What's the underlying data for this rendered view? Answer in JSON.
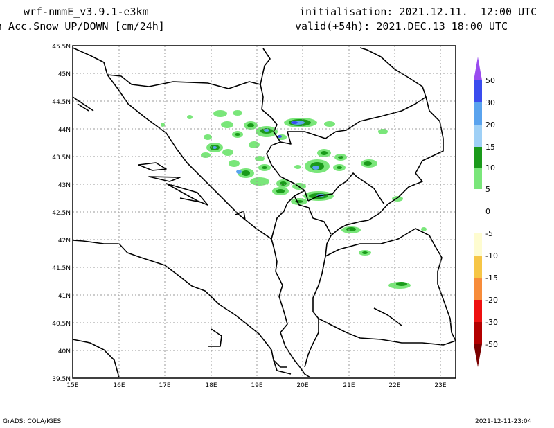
{
  "header": {
    "model": "wrf-nmmE_v3.9.1-e3km",
    "product": "n Acc.Snow UP/DOWN [cm/24h]",
    "init": "initialisation: 2021.12.11.  12:00 UTC",
    "valid": "valid(+54h): 2021.DEC.13 18:00 UTC"
  },
  "footer": {
    "credit": "GrADS: COLA/IGES",
    "timestamp": "2021-12-11-23:04"
  },
  "map": {
    "lat_labels": [
      "45.5N",
      "45N",
      "44.5N",
      "44N",
      "43.5N",
      "43N",
      "42.5N",
      "42N",
      "41.5N",
      "41N",
      "40.5N",
      "40N",
      "39.5N"
    ],
    "lon_labels": [
      "15E",
      "16E",
      "17E",
      "18E",
      "19E",
      "20E",
      "21E",
      "22E",
      "23E"
    ]
  },
  "colorbar": {
    "labels": [
      "50",
      "30",
      "20",
      "15",
      "10",
      "5",
      "0",
      "-5",
      "-10",
      "-15",
      "-20",
      "-30",
      "-50"
    ],
    "colors": [
      "#9a4cf0",
      "#3a4cee",
      "#5aa3ee",
      "#9fd0f6",
      "#1a9a1a",
      "#7ae67a",
      "#ffffff",
      "#fefcd0",
      "#f6c646",
      "#f78c3a",
      "#ee1010",
      "#b30000",
      "#7a0000"
    ]
  }
}
